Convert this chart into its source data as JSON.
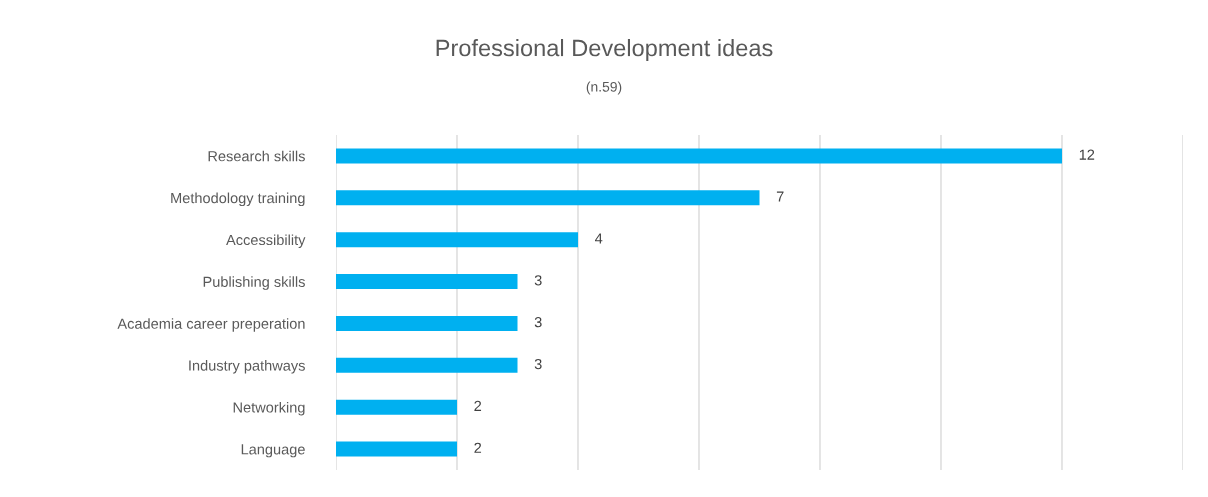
{
  "chart_data": {
    "type": "bar",
    "orientation": "horizontal",
    "title": "Professional Development ideas",
    "subtitle": "(n.59)",
    "categories": [
      "Research skills",
      "Methodology training",
      "Accessibility",
      "Publishing skills",
      "Academia career preperation",
      "Industry pathways",
      "Networking",
      "Language"
    ],
    "values": [
      12,
      7,
      4,
      3,
      3,
      3,
      2,
      2
    ],
    "color": "#00b0f0",
    "xlim": [
      0,
      14
    ],
    "xticks": [
      {
        "value": 0,
        "label": null
      },
      {
        "value": 2,
        "label": null
      },
      {
        "value": 4,
        "label": null
      },
      {
        "value": 6,
        "label": null
      },
      {
        "value": 8,
        "label": null
      },
      {
        "value": 10,
        "label": null
      },
      {
        "value": 12,
        "label": null
      },
      {
        "value": 14,
        "label": null
      }
    ],
    "grid": "x",
    "tick_labels": "y",
    "data_labels": true
  }
}
